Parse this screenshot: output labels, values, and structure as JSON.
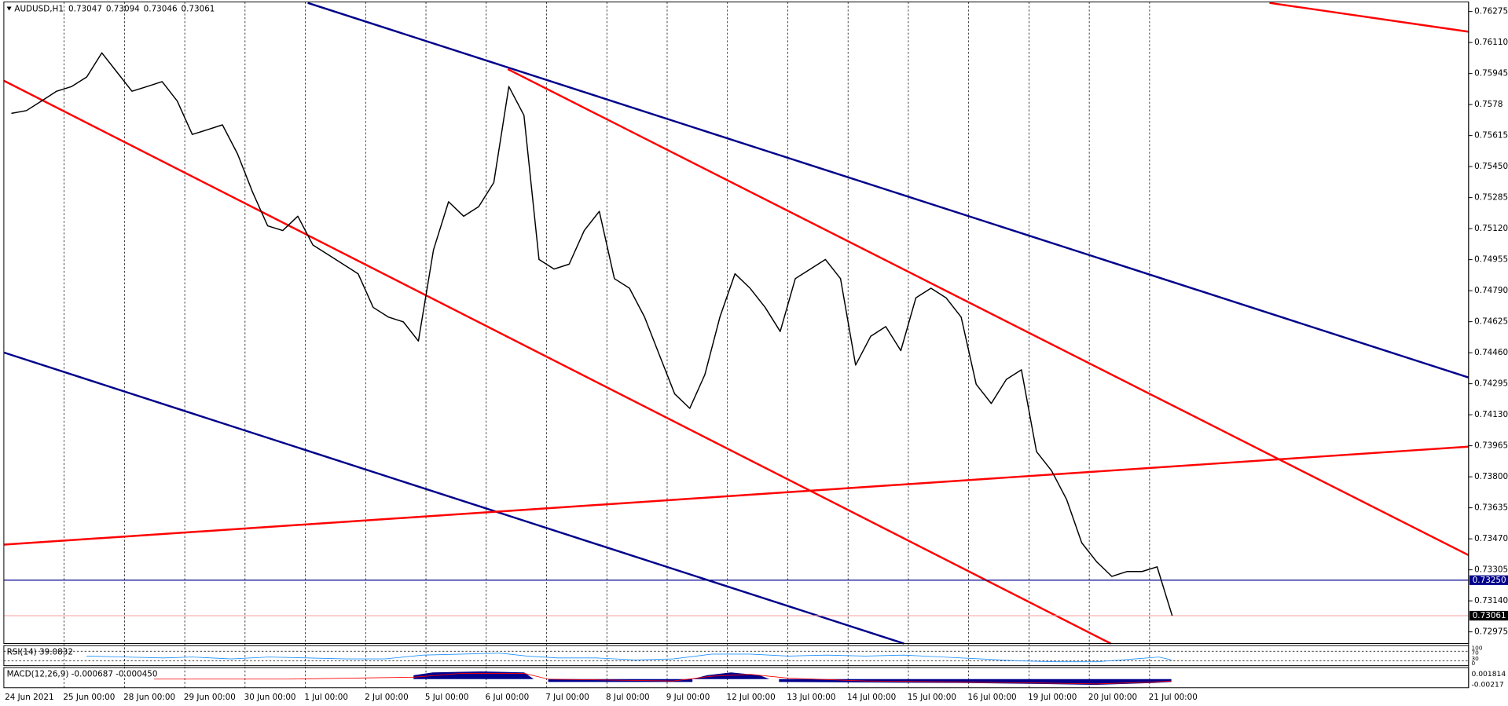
{
  "chart_data": {
    "type": "line",
    "title": "AUDUSD,H1",
    "header_values": [
      0.73047,
      0.73094,
      0.73046,
      0.73061
    ],
    "color": "#000000",
    "categories": [
      "24 Jun 2021",
      null,
      null,
      null,
      "25 Jun 00:00",
      null,
      null,
      null,
      "28 Jun 00:00",
      null,
      null,
      null,
      "29 Jun 00:00",
      null,
      null,
      null,
      "30 Jun 00:00",
      null,
      null,
      null,
      "1 Jul 00:00",
      null,
      null,
      null,
      "2 Jul 00:00",
      null,
      null,
      null,
      "5 Jul 00:00",
      null,
      null,
      null,
      "6 Jul 00:00",
      null,
      null,
      null,
      "7 Jul 00:00",
      null,
      null,
      null,
      "8 Jul 00:00",
      null,
      null,
      null,
      "9 Jul 00:00",
      null,
      null,
      null,
      "12 Jul 00:00",
      null,
      null,
      null,
      "13 Jul 00:00",
      null,
      null,
      null,
      "14 Jul 00:00",
      null,
      null,
      null,
      "15 Jul 00:00",
      null,
      null,
      null,
      "16 Jul 00:00",
      null,
      null,
      null,
      "19 Jul 00:00",
      null,
      null,
      null,
      "20 Jul 00:00",
      null,
      null,
      null,
      "21 Jul 00:00",
      null
    ],
    "values": [
      0.75733,
      0.75748,
      0.75799,
      0.75851,
      0.75876,
      0.75927,
      0.76055,
      0.75953,
      0.75851,
      0.75876,
      0.75902,
      0.75799,
      0.75621,
      0.75646,
      0.75672,
      0.75518,
      0.75314,
      0.75135,
      0.7511,
      0.75186,
      0.75033,
      0.74982,
      0.74931,
      0.7488,
      0.74701,
      0.7465,
      0.74624,
      0.74522,
      0.75007,
      0.75263,
      0.75186,
      0.75237,
      0.75365,
      0.75876,
      0.75723,
      0.74956,
      0.74905,
      0.74931,
      0.7511,
      0.75212,
      0.74854,
      0.74803,
      0.7465,
      0.74445,
      0.74241,
      0.74164,
      0.74343,
      0.7465,
      0.7488,
      0.74803,
      0.74701,
      0.74573,
      0.74854,
      0.74905,
      0.74956,
      0.74854,
      0.74394,
      0.74547,
      0.74599,
      0.74471,
      0.74752,
      0.74803,
      0.74752,
      0.7465,
      0.74292,
      0.7419,
      0.74318,
      0.74369,
      0.73934,
      0.73832,
      0.73679,
      0.73449,
      0.73347,
      0.7327,
      0.73296,
      0.73296,
      0.73321,
      0.73061
    ],
    "ylim": [
      0.72923,
      0.76326
    ],
    "yticks": [
      0.76275,
      {
        "value": 0.7611,
        "label": "0.76110"
      },
      0.75945,
      0.7578,
      0.75615,
      {
        "value": 0.7545,
        "label": "0.75450"
      },
      0.75285,
      {
        "value": 0.7512,
        "label": "0.75120"
      },
      0.74955,
      {
        "value": 0.7479,
        "label": "0.74790"
      },
      0.74625,
      {
        "value": 0.7446,
        "label": "0.74460"
      },
      0.74295,
      {
        "value": 0.7413,
        "label": "0.74130"
      },
      0.73965,
      {
        "value": 0.738,
        "label": "0.73800"
      },
      0.73635,
      {
        "value": 0.7347,
        "label": "0.73470"
      },
      0.73305,
      {
        "value": 0.7314,
        "label": "0.73140"
      },
      0.72975
    ],
    "levels": [
      {
        "value": 0.7325,
        "label": "0.73250",
        "color": "#00008b"
      },
      {
        "value": 0.73061,
        "label": "0.73061",
        "color": "#000000"
      }
    ],
    "grid": true
  },
  "indicators": {
    "rsi_label": "RSI(14) 39.0832",
    "rsi_ticks": [
      "100",
      "70",
      "30",
      "0"
    ],
    "macd_label": "MACD(12,26,9) -0.000687 -0.000450",
    "macd_ticks": [
      "0.001814",
      "-0.00217"
    ]
  }
}
